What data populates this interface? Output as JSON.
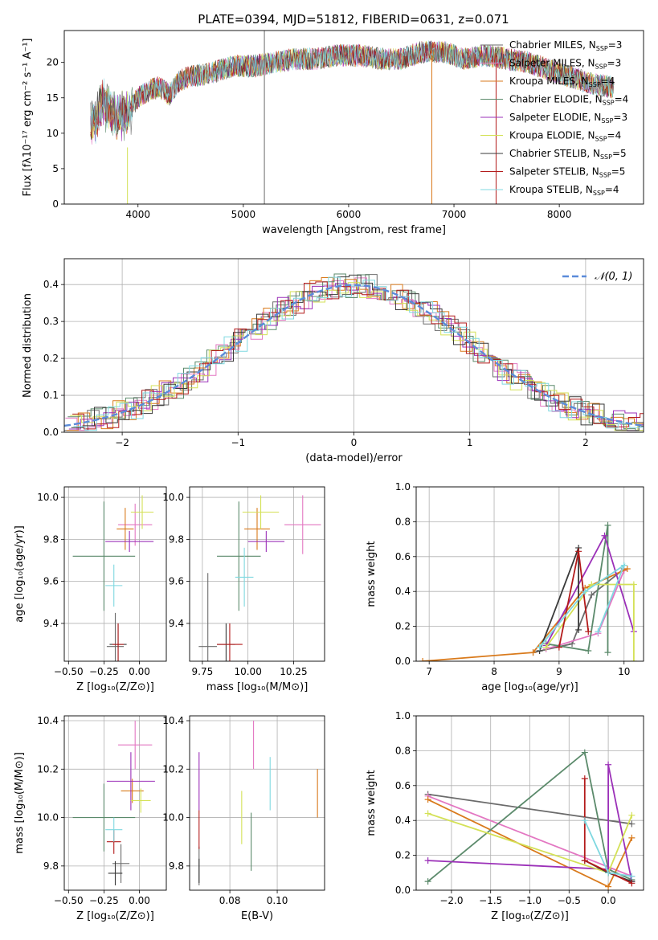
{
  "title": "PLATE=0394, MJD=51812, FIBERID=0631, z=0.071",
  "palette": {
    "chabrier_miles": "#6b6b6b",
    "salpeter_miles": "#e377c2",
    "kroupa_miles": "#d97a1c",
    "chabrier_elodie": "#5b8a6b",
    "salpeter_elodie": "#9b30b8",
    "kroupa_elodie": "#d4e157",
    "chabrier_stelib": "#3a3a3a",
    "salpeter_stelib": "#b31b1b",
    "kroupa_stelib": "#7fd8e0",
    "blue_line": "#5b8bd9"
  },
  "chart_data": [
    {
      "id": "spectrum",
      "type": "line",
      "xlabel": "wavelength [Angstrom, rest frame]",
      "ylabel": "Flux [fλ10⁻¹⁷ erg cm⁻² s⁻¹ A⁻¹]",
      "xlim": [
        3300,
        8800
      ],
      "ylim": [
        0,
        24.5
      ],
      "xticks": [
        "4000",
        "5000",
        "6000",
        "7000",
        "8000"
      ],
      "yticks": [
        "0",
        "5",
        "10",
        "15",
        "20"
      ],
      "legend_position": "top-right",
      "legend": [
        {
          "label": "Chabrier MILES, N",
          "sub": "SSP",
          "suffix": "=3",
          "color": "#6b6b6b"
        },
        {
          "label": "Salpeter MILES, N",
          "sub": "SSP",
          "suffix": "=3",
          "color": "#e377c2"
        },
        {
          "label": "Kroupa MILES, N",
          "sub": "SSP",
          "suffix": "=4",
          "color": "#d97a1c"
        },
        {
          "label": "Chabrier ELODIE, N",
          "sub": "SSP",
          "suffix": "=4",
          "color": "#5b8a6b"
        },
        {
          "label": "Salpeter ELODIE, N",
          "sub": "SSP",
          "suffix": "=3",
          "color": "#9b30b8"
        },
        {
          "label": "Kroupa ELODIE, N",
          "sub": "SSP",
          "suffix": "=4",
          "color": "#d4e157"
        },
        {
          "label": "Chabrier STELIB, N",
          "sub": "SSP",
          "suffix": "=5",
          "color": "#3a3a3a"
        },
        {
          "label": "Salpeter STELIB, N",
          "sub": "SSP",
          "suffix": "=5",
          "color": "#b31b1b"
        },
        {
          "label": "Kroupa STELIB, N",
          "sub": "SSP",
          "suffix": "=4",
          "color": "#7fd8e0"
        }
      ],
      "spectrum_envelope": {
        "x": [
          3550,
          3600,
          3650,
          3700,
          3800,
          3900,
          4000,
          4100,
          4200,
          4300,
          4400,
          4500,
          4700,
          4900,
          5100,
          5300,
          5500,
          5700,
          5900,
          6100,
          6300,
          6500,
          6700,
          6900,
          7100,
          7300,
          7500,
          7700,
          7900,
          8100,
          8300,
          8500
        ],
        "y": [
          11.0,
          12.0,
          14.5,
          14.0,
          12.5,
          13.0,
          15.0,
          16.0,
          16.5,
          15.5,
          17.5,
          18.0,
          18.5,
          19.5,
          19.5,
          20.0,
          20.5,
          20.5,
          21.0,
          21.0,
          20.5,
          20.5,
          21.5,
          21.5,
          20.5,
          21.0,
          20.5,
          20.0,
          19.0,
          18.0,
          17.0,
          16.5
        ]
      }
    },
    {
      "id": "residuals",
      "type": "histogram",
      "xlabel": "(data-model)/error",
      "ylabel": "Normed distribution",
      "xlim": [
        -2.5,
        2.5
      ],
      "ylim": [
        0,
        0.47
      ],
      "xticks": [
        "−2",
        "−1",
        "0",
        "1",
        "2"
      ],
      "yticks": [
        "0.0",
        "0.1",
        "0.2",
        "0.3",
        "0.4"
      ],
      "legend_position": "top-right",
      "legend": [
        {
          "label": "𝒩(0, 1)",
          "color": "#5b8bd9",
          "style": "dashed"
        }
      ],
      "bin_width": 0.1
    },
    {
      "id": "age_vs_Z",
      "type": "errorbar",
      "xlabel": "Z [log₁₀(Z/Z⊙)]",
      "ylabel": "age  [log₁₀(age/yr)]",
      "xlim": [
        -0.53,
        0.19
      ],
      "ylim": [
        9.22,
        10.05
      ],
      "xticks": [
        "−0.50",
        "−0.25",
        "0.00"
      ],
      "yticks": [
        "9.4",
        "9.6",
        "9.8",
        "10.0"
      ]
    },
    {
      "id": "age_vs_mass",
      "type": "errorbar",
      "xlabel": "mass [log₁₀(M/M⊙)]",
      "ylabel": "",
      "xlim": [
        9.68,
        10.42
      ],
      "ylim": [
        9.22,
        10.05
      ],
      "xticks": [
        "9.75",
        "10.00",
        "10.25"
      ],
      "yticks": [
        "9.4",
        "9.6",
        "9.8",
        "10.0"
      ]
    },
    {
      "id": "weight_vs_age",
      "type": "line",
      "xlabel": "age  [log₁₀(age/yr)]",
      "ylabel": "mass weight",
      "xlim": [
        6.8,
        10.3
      ],
      "ylim": [
        0,
        1.0
      ],
      "xticks": [
        "7",
        "8",
        "9",
        "10"
      ],
      "yticks": [
        "0.0",
        "0.2",
        "0.4",
        "0.6",
        "0.8",
        "1.0"
      ]
    },
    {
      "id": "mass_vs_Z",
      "type": "errorbar",
      "xlabel": "Z [log₁₀(Z/Z⊙)]",
      "ylabel": "mass [log₁₀(M/M⊙)]",
      "xlim": [
        -0.53,
        0.19
      ],
      "ylim": [
        9.7,
        10.42
      ],
      "xticks": [
        "−0.50",
        "−0.25",
        "0.00"
      ],
      "yticks": [
        "9.8",
        "10.0",
        "10.2",
        "10.4"
      ]
    },
    {
      "id": "mass_vs_ebv",
      "type": "errorbar",
      "xlabel": "E(B-V)",
      "ylabel": "",
      "xlim": [
        0.063,
        0.12
      ],
      "ylim": [
        9.7,
        10.42
      ],
      "xticks": [
        "0.08",
        "0.10"
      ],
      "yticks": [
        "9.8",
        "10.0",
        "10.2",
        "10.4"
      ]
    },
    {
      "id": "weight_vs_Z",
      "type": "line",
      "xlabel": "Z [log₁₀(Z/Z⊙)]",
      "ylabel": "mass weight",
      "xlim": [
        -2.45,
        0.45
      ],
      "ylim": [
        0,
        1.0
      ],
      "xticks": [
        "−2.0",
        "−1.5",
        "−1.0",
        "−0.5",
        "0.0"
      ],
      "yticks": [
        "0.0",
        "0.2",
        "0.4",
        "0.6",
        "0.8",
        "1.0"
      ]
    }
  ]
}
